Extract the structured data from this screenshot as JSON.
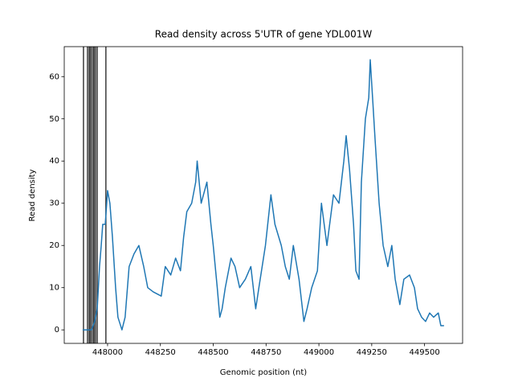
{
  "chart_data": {
    "type": "line",
    "title": "Read density across 5'UTR of gene YDL001W",
    "xlabel": "Genomic position (nt)",
    "ylabel": "Read density",
    "xlim": [
      447795,
      449680
    ],
    "ylim": [
      -3.2,
      67.1
    ],
    "xticks": [
      448000,
      448250,
      448500,
      448750,
      449000,
      449250,
      449500
    ],
    "yticks": [
      0,
      10,
      20,
      30,
      40,
      50,
      60
    ],
    "vlines": {
      "color": "#3a3a3a",
      "x": [
        447886,
        447905,
        447913,
        447917,
        447924,
        447932,
        447936,
        447943,
        447951,
        447992
      ]
    },
    "series": [
      {
        "color": "#1f77b4",
        "x": [
          447882,
          447924,
          447939,
          447951,
          447962,
          447970,
          447977,
          447989,
          448000,
          448011,
          448023,
          448038,
          448049,
          448068,
          448083,
          448102,
          448125,
          448148,
          448171,
          448190,
          448216,
          448254,
          448273,
          448299,
          448322,
          448345,
          448360,
          448375,
          448398,
          448417,
          448424,
          448443,
          448470,
          448489,
          448500,
          448519,
          448531,
          448542,
          448557,
          448584,
          448603,
          448625,
          448652,
          448678,
          448701,
          448716,
          448747,
          448773,
          448792,
          448822,
          448841,
          448860,
          448879,
          448906,
          448929,
          448944,
          448966,
          448993,
          449012,
          449038,
          449069,
          449095,
          449118,
          449129,
          449145,
          449164,
          449175,
          449190,
          449201,
          449220,
          449236,
          449243,
          449254,
          449266,
          449285,
          449304,
          449326,
          449345,
          449361,
          449383,
          449402,
          449429,
          449452,
          449467,
          449486,
          449505,
          449524,
          449543,
          449565,
          449577,
          449592
        ],
        "values": [
          0,
          0,
          2,
          5,
          15,
          20,
          25,
          25,
          33,
          30,
          22,
          10,
          3,
          0,
          3,
          15,
          18,
          20,
          15,
          10,
          9,
          8,
          15,
          13,
          17,
          14,
          22,
          28,
          30,
          35,
          40,
          30,
          35,
          25,
          20,
          10,
          3,
          5,
          10,
          17,
          15,
          10,
          12,
          15,
          5,
          10,
          20,
          32,
          25,
          20,
          15,
          12,
          20,
          12,
          2,
          5,
          10,
          14,
          30,
          20,
          32,
          30,
          40,
          46,
          38,
          25,
          14,
          12,
          35,
          50,
          55,
          64,
          55,
          45,
          30,
          20,
          15,
          20,
          12,
          6,
          12,
          13,
          10,
          5,
          3,
          2,
          4,
          3,
          4,
          1,
          1
        ]
      }
    ]
  }
}
